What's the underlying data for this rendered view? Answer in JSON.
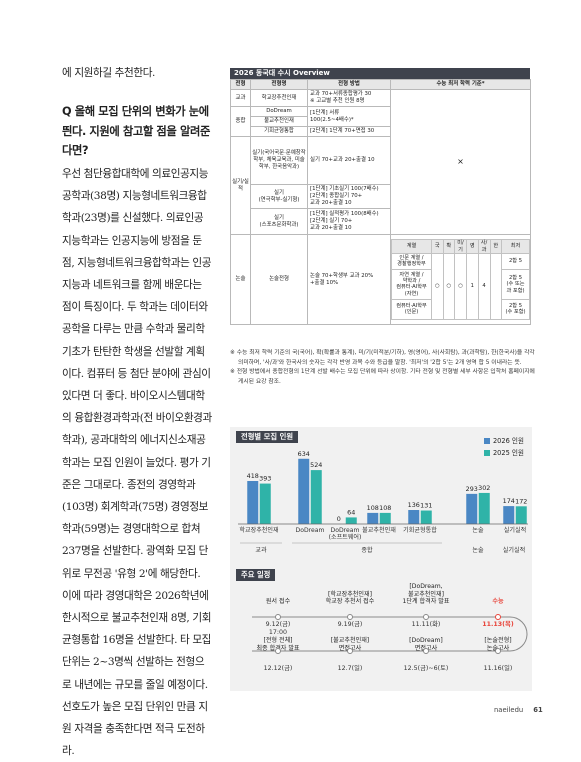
{
  "article": {
    "p0": "에 지원하길 추천한다.",
    "question": "Q 올해 모집 단위의 변화가 눈에 띈다. 지원에 참고할 점을 알려준다면?",
    "answer": "우선 첨단융합대학에 의료인공지능공학과(38명) 지능형네트워크융합학과(23명)를 신설했다. 의료인공지능학과는 인공지능에 방점을 둔 점, 지능형네트워크융합학과는 인공지능과 네트워크를 함께 배운다는 점이 특징이다. 두 학과는 데이터와 공학을 다루는 만큼 수학과 물리학 기초가 탄탄한 학생을 선발할 계획이다. 컴퓨터 등 첨단 분야에 관심이 있다면 더 좋다. 바이오시스템대학의 융합환경과학과(전 바이오환경과학과), 공과대학의 에너지신소재공학과는 모집 인원이 늘었다. 평가 기준은 그대로다. 종전의 경영학과(103명) 회계학과(75명) 경영정보학과(59명)는 경영대학으로 합쳐 237명을 선발한다. 광역화 모집 단위로 무전공 '유형 2'에 해당한다. 이에 따라 경영대학은 2026학년에 한시적으로 불교추천인재 8명, 기회균형통합 16명을 선발한다. 타 모집 단위는 2~3명씩 선발하는 전형으로 내년에는 규모를 줄일 예정이다. 선호도가 높은 모집 단위인 만큼 지원 자격을 충족한다면 적극 도전하라."
  },
  "table": {
    "title": "2026 동국대 수시 Overview",
    "headers": [
      "전형",
      "전형명",
      "전형 방법",
      "수능 최저 학력 기준*"
    ],
    "g_kyokwa": "교과",
    "g_jonghap": "종합",
    "g_silgi": "실기/실적",
    "g_nonsul": "논술",
    "r1_name": "학교장추천인재",
    "r1_method": "교과 70+서류종합평가 30\n※ 고교별 추천 인원 8명",
    "r2_name": "DoDream",
    "r2_method_a": "[1단계] 서류\n100(2.5~4배수)*",
    "r2_method_b": "[2단계] 1단계 70+면접 30",
    "r3_name": "불교추천인재",
    "r4_name": "기회균형통합",
    "r5_name": "실기(국어국문·문예창작학부, 체육교육과, 미술학부, 한국음악과)",
    "r5_method": "실기 70+교과 20+출결 10",
    "r6_name": "실기\n(연극학부-실기형)",
    "r6_method": "[1단계] 기초실기 100(7배수)\n[2단계] 종합실기 70+\n교과 20+출결 10",
    "r7_name": "실기\n(스포츠문화학과)",
    "r7_method": "[1단계] 실적평가 100(8배수)\n[2단계] 실기 70+\n교과 20+출결 10",
    "r8_name": "논술전형",
    "r8_method": "논술 70+학생부 교과 20%\n+출결 10%",
    "csat_x": "×",
    "csat_headers": [
      "계열",
      "국",
      "확",
      "미/기",
      "영",
      "사/과",
      "한",
      "최저"
    ],
    "csat_row1_label": "인문 계열 /\n경찰행정학부",
    "csat_row1_min": "2합 5",
    "csat_row2_label": "자연 계열 /\n약학과 /\n컴퓨터·AI학부\n(자연)",
    "csat_row2_min": "2합 5\n(수 또는\n과 포함)",
    "csat_row3_label": "컴퓨터·AI학부\n(인문)",
    "csat_row3_min": "2합 5\n(수 포함)",
    "csat_marks": [
      "○",
      "○",
      "○",
      "1",
      "4"
    ]
  },
  "notes": [
    "※ 수능 최저 학력 기준의 국(국어), 확(확률과 통계), 미/기(미적분/기하), 영(영어), 사(사회탐), 과(과학탐), 한(한국사)을 각각 의미하며, '사/과'와 한국사의 숫자는 각각 반영 과목 수와 등급을 말함. '최저'의 '2합 5'는 2개 영역 합 5 이내라는 뜻.",
    "※ 전형 방법에서 종합전형의 1단계 선발 배수는 모집 단위에 따라 상이함. 기타 전형 및 전형별 세부 사항은 입학처 홈페이지에 게시된 요강 참조."
  ],
  "chart_title": "전형별 모집 인원",
  "chart_data": {
    "type": "bar",
    "title": "전형별 모집 인원",
    "categories": [
      "학교장추천인재",
      "DoDream",
      "DoDream(소프트웨어)",
      "불교추천인재",
      "기회균형통합",
      "논술",
      "실기실적"
    ],
    "groups": [
      {
        "label": "교과",
        "members": [
          "학교장추천인재"
        ]
      },
      {
        "label": "종합",
        "members": [
          "DoDream",
          "DoDream(소프트웨어)",
          "불교추천인재",
          "기회균형통합"
        ]
      },
      {
        "label": "논술",
        "members": [
          "논술"
        ]
      },
      {
        "label": "실기실적",
        "members": [
          "실기실적"
        ]
      }
    ],
    "series": [
      {
        "name": "2026 인원",
        "color": "#4a87c4",
        "values": [
          418,
          634,
          0,
          108,
          136,
          293,
          174
        ]
      },
      {
        "name": "2025 인원",
        "color": "#2fb3a8",
        "values": [
          393,
          524,
          64,
          108,
          131,
          302,
          172
        ]
      }
    ],
    "ylim": [
      0,
      700
    ],
    "legend_position": "top-right",
    "grid": false
  },
  "schedule": {
    "title": "주요 일정",
    "top": [
      {
        "label": "원서 접수",
        "date": "9.12(금)\n17:00"
      },
      {
        "label": "[학교장추천인재]\n학교장 추천서 접수",
        "date": "9.19(금)"
      },
      {
        "label": "[DoDream,\n불교추천인재]\n1단계 합격자 발표",
        "date": "11.11(화)"
      },
      {
        "label": "수능",
        "date": "11.13(목)"
      }
    ],
    "bottom": [
      {
        "label": "[전형 전체]\n최종 합격자 발표",
        "date": "12.12(금)"
      },
      {
        "label": "[불교추천인재]\n면접고사",
        "date": "12.7(일)"
      },
      {
        "label": "[DoDream]\n면접고사",
        "date": "12.5(금)~6(토)"
      },
      {
        "label": "[논술전형]\n논술고사",
        "date": "11.16(일)"
      }
    ],
    "accent": "#e8443a"
  },
  "footer": {
    "brand": "naeiledu",
    "page": "61"
  }
}
